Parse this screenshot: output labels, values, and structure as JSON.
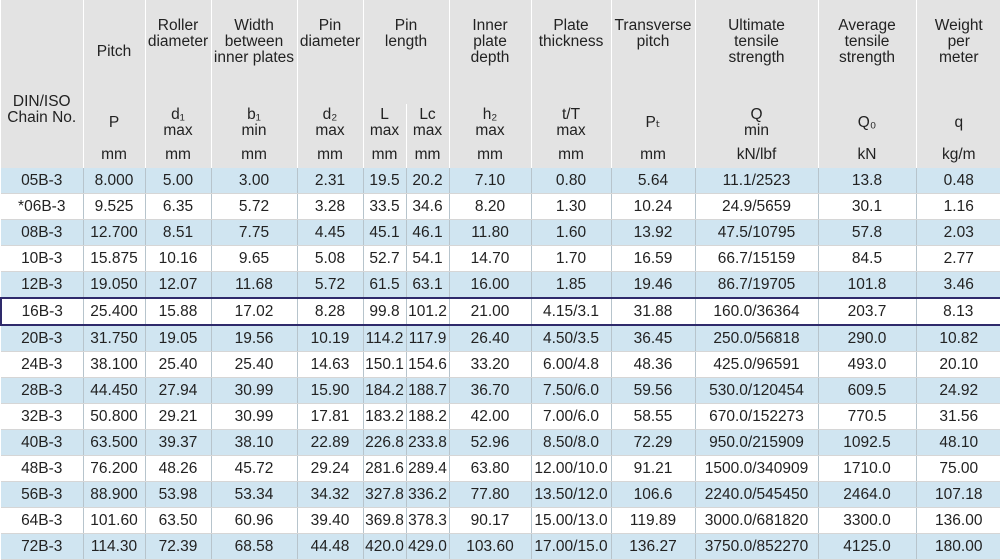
{
  "headers": {
    "chain_no": "DIN/ISO\nChain No.",
    "pitch": "Pitch",
    "roller_diameter": "Roller\ndiameter",
    "width_between": "Width\nbetween\ninner plates",
    "pin_diameter": "Pin\ndiameter",
    "pin_length": "Pin\nlength",
    "inner_plate_depth": "Inner\nplate\ndepth",
    "plate_thickness": "Plate\nthickness",
    "transverse_pitch": "Transverse\npitch",
    "ultimate_tensile": "Ultimate\ntensile\nstrength",
    "average_tensile": "Average\ntensile\nstrength",
    "weight": "Weight\nper\nmeter"
  },
  "symbols": [
    "P",
    "d₁\nmax",
    "b₁\nmin",
    "d₂\nmax",
    "L\nmax",
    "Lc\nmax",
    "h₂\nmax",
    "t/T\nmax",
    "Pₜ",
    "Q\nmin",
    "Q₀",
    "q"
  ],
  "units": [
    "mm",
    "mm",
    "mm",
    "mm",
    "mm",
    "mm",
    "mm",
    "mm",
    "mm",
    "kN/lbf",
    "kN",
    "kg/m"
  ],
  "highlight_chain": "16B-3",
  "rows": [
    [
      "05B-3",
      "8.000",
      "5.00",
      "3.00",
      "2.31",
      "19.5",
      "20.2",
      "7.10",
      "0.80",
      "5.64",
      "11.1/2523",
      "13.8",
      "0.48"
    ],
    [
      "*06B-3",
      "9.525",
      "6.35",
      "5.72",
      "3.28",
      "33.5",
      "34.6",
      "8.20",
      "1.30",
      "10.24",
      "24.9/5659",
      "30.1",
      "1.16"
    ],
    [
      "08B-3",
      "12.700",
      "8.51",
      "7.75",
      "4.45",
      "45.1",
      "46.1",
      "11.80",
      "1.60",
      "13.92",
      "47.5/10795",
      "57.8",
      "2.03"
    ],
    [
      "10B-3",
      "15.875",
      "10.16",
      "9.65",
      "5.08",
      "52.7",
      "54.1",
      "14.70",
      "1.70",
      "16.59",
      "66.7/15159",
      "84.5",
      "2.77"
    ],
    [
      "12B-3",
      "19.050",
      "12.07",
      "11.68",
      "5.72",
      "61.5",
      "63.1",
      "16.00",
      "1.85",
      "19.46",
      "86.7/19705",
      "101.8",
      "3.46"
    ],
    [
      "16B-3",
      "25.400",
      "15.88",
      "17.02",
      "8.28",
      "99.8",
      "101.2",
      "21.00",
      "4.15/3.1",
      "31.88",
      "160.0/36364",
      "203.7",
      "8.13"
    ],
    [
      "20B-3",
      "31.750",
      "19.05",
      "19.56",
      "10.19",
      "114.2",
      "117.9",
      "26.40",
      "4.50/3.5",
      "36.45",
      "250.0/56818",
      "290.0",
      "10.82"
    ],
    [
      "24B-3",
      "38.100",
      "25.40",
      "25.40",
      "14.63",
      "150.1",
      "154.6",
      "33.20",
      "6.00/4.8",
      "48.36",
      "425.0/96591",
      "493.0",
      "20.10"
    ],
    [
      "28B-3",
      "44.450",
      "27.94",
      "30.99",
      "15.90",
      "184.2",
      "188.7",
      "36.70",
      "7.50/6.0",
      "59.56",
      "530.0/120454",
      "609.5",
      "24.92"
    ],
    [
      "32B-3",
      "50.800",
      "29.21",
      "30.99",
      "17.81",
      "183.2",
      "188.2",
      "42.00",
      "7.00/6.0",
      "58.55",
      "670.0/152273",
      "770.5",
      "31.56"
    ],
    [
      "40B-3",
      "63.500",
      "39.37",
      "38.10",
      "22.89",
      "226.8",
      "233.8",
      "52.96",
      "8.50/8.0",
      "72.29",
      "950.0/215909",
      "1092.5",
      "48.10"
    ],
    [
      "48B-3",
      "76.200",
      "48.26",
      "45.72",
      "29.24",
      "281.6",
      "289.4",
      "63.80",
      "12.00/10.0",
      "91.21",
      "1500.0/340909",
      "1710.0",
      "75.00"
    ],
    [
      "56B-3",
      "88.900",
      "53.98",
      "53.34",
      "34.32",
      "327.8",
      "336.2",
      "77.80",
      "13.50/12.0",
      "106.6",
      "2240.0/545450",
      "2464.0",
      "107.18"
    ],
    [
      "64B-3",
      "101.60",
      "63.50",
      "60.96",
      "39.40",
      "369.8",
      "378.3",
      "90.17",
      "15.00/13.0",
      "119.89",
      "3000.0/681820",
      "3300.0",
      "136.00"
    ],
    [
      "72B-3",
      "114.30",
      "72.39",
      "68.58",
      "44.48",
      "420.0",
      "429.0",
      "103.60",
      "17.00/15.0",
      "136.27",
      "3750.0/852270",
      "4125.0",
      "180.00"
    ]
  ]
}
